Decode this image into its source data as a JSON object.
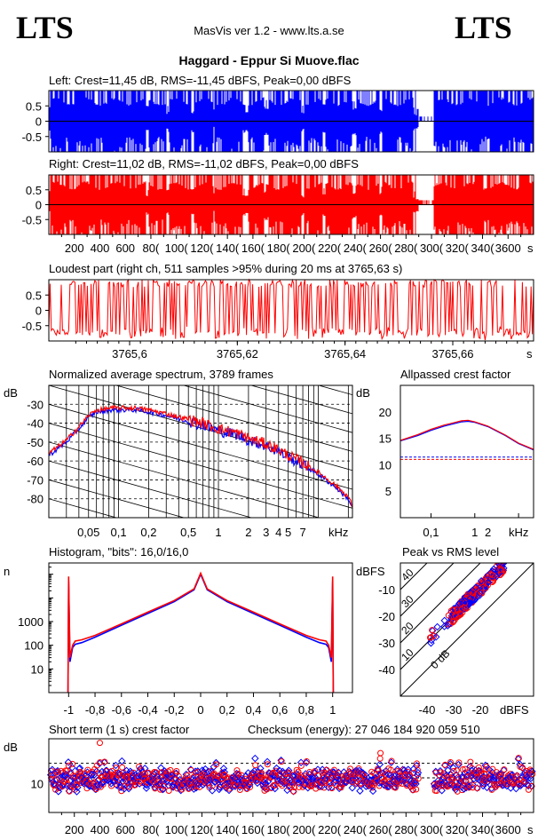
{
  "header": {
    "logo_left": "LTS",
    "logo_right": "LTS",
    "app_title": "MasVis ver 1.2 - www.lts.a.se",
    "file_title": "Haggard - Eppur Si Muove.flac"
  },
  "colors": {
    "left": "#0000ff",
    "right": "#ff0000",
    "line": "#000000"
  },
  "chart_data": [
    {
      "id": "waveform-left",
      "type": "area",
      "title": "Left: Crest=11,45 dB, RMS=-11,45 dBFS, Peak=0,00 dBFS",
      "ylim": [
        -1,
        1
      ],
      "yticks": [
        "0.5",
        "0",
        "-0.5"
      ],
      "ytick_values": [
        0.5,
        0,
        -0.5
      ],
      "xlim": [
        0,
        3800
      ],
      "series_color": "#0000ff"
    },
    {
      "id": "waveform-right",
      "type": "area",
      "title": "Right: Crest=11,02 dB, RMS=-11,02 dBFS, Peak=0,00 dBFS",
      "ylim": [
        -1,
        1
      ],
      "yticks": [
        "0.5",
        "0",
        "-0.5"
      ],
      "ytick_values": [
        0.5,
        0,
        -0.5
      ],
      "xlim": [
        0,
        3800
      ],
      "xticks": [
        "200",
        "400",
        "600",
        "800",
        "1000",
        "1200",
        "1400",
        "1600",
        "1800",
        "2000",
        "2200",
        "2400",
        "2600",
        "2800",
        "3000",
        "3200",
        "3400",
        "3600"
      ],
      "xticks_shown": [
        "200",
        "400",
        "600",
        "80(",
        "100(",
        "120(",
        "140(",
        "160(",
        "180(",
        "200(",
        "220(",
        "240(",
        "260(",
        "280(",
        "300(",
        "320(",
        "340(",
        "3600"
      ],
      "xtick_values": [
        200,
        400,
        600,
        800,
        1000,
        1200,
        1400,
        1600,
        1800,
        2000,
        2200,
        2400,
        2600,
        2800,
        3000,
        3200,
        3400,
        3600
      ],
      "xunit": "s",
      "series_color": "#ff0000"
    },
    {
      "id": "loudest-part",
      "type": "line",
      "title": "Loudest part (right ch, 511 samples >95% during 20 ms at 3765,63 s)",
      "ylim": [
        -1,
        1
      ],
      "yticks": [
        "0.5",
        "0",
        "-0.5"
      ],
      "ytick_values": [
        0.5,
        0,
        -0.5
      ],
      "xlim": [
        3765.585,
        3765.675
      ],
      "xticks": [
        "3765,6",
        "3765,62",
        "3765,64",
        "3765,66"
      ],
      "xtick_values": [
        3765.6,
        3765.62,
        3765.64,
        3765.66
      ],
      "xunit": "s",
      "series_color": "#ff0000"
    },
    {
      "id": "spectrum",
      "type": "line",
      "title": "Normalized average spectrum, 3789 frames",
      "ylabel": "dB",
      "ylim": [
        -90,
        -20
      ],
      "yticks": [
        "-30",
        "-40",
        "-50",
        "-60",
        "-70",
        "-80"
      ],
      "ytick_values": [
        -30,
        -40,
        -50,
        -60,
        -70,
        -80
      ],
      "xscale": "log",
      "xlim": [
        0.02,
        22
      ],
      "xticks": [
        "0,05",
        "0,1",
        "0,2",
        "0,5",
        "1",
        "2",
        "3",
        "4",
        "5",
        "7"
      ],
      "xtick_values": [
        0.05,
        0.1,
        0.2,
        0.5,
        1,
        2,
        3,
        4,
        5,
        7
      ],
      "xunit": "kHz",
      "x": [
        0.02,
        0.03,
        0.04,
        0.05,
        0.06,
        0.07,
        0.08,
        0.1,
        0.15,
        0.2,
        0.3,
        0.5,
        0.7,
        1,
        1.5,
        2,
        3,
        4,
        5,
        7,
        10,
        15,
        20,
        22
      ],
      "series": [
        {
          "name": "left",
          "color": "#0000ff",
          "values": [
            -57,
            -50,
            -43,
            -37,
            -34,
            -34,
            -33,
            -33,
            -33,
            -34,
            -36,
            -39,
            -41,
            -44,
            -46,
            -49,
            -52,
            -55,
            -58,
            -62,
            -67,
            -74,
            -80,
            -85
          ]
        },
        {
          "name": "right",
          "color": "#ff0000",
          "values": [
            -56,
            -49,
            -42,
            -36,
            -33,
            -33,
            -32,
            -32,
            -32,
            -33,
            -35,
            -38,
            -40,
            -43,
            -45,
            -48,
            -51,
            -54,
            -57,
            -61,
            -66,
            -73,
            -79,
            -84
          ]
        }
      ]
    },
    {
      "id": "allpassed-crest",
      "type": "line",
      "title": "Allpassed crest factor",
      "ylabel": "dB",
      "ylim": [
        0,
        25
      ],
      "yticks": [
        "20",
        "15",
        "10",
        "5"
      ],
      "ytick_values": [
        20,
        15,
        10,
        5
      ],
      "xscale": "log",
      "xlim": [
        0.02,
        22
      ],
      "xticks": [
        "0,1",
        "1",
        "2"
      ],
      "xtick_values": [
        0.1,
        1,
        2
      ],
      "xunit": "kHz",
      "x": [
        0.02,
        0.05,
        0.1,
        0.2,
        0.5,
        0.7,
        1,
        2,
        5,
        10,
        22
      ],
      "series": [
        {
          "name": "left",
          "color": "#0000ff",
          "values": [
            14.5,
            15.5,
            16.5,
            17.3,
            18.1,
            18.2,
            18.0,
            17.2,
            15.5,
            14.0,
            12.8
          ],
          "reference": 11.45
        },
        {
          "name": "right",
          "color": "#ff0000",
          "values": [
            14.6,
            15.7,
            16.7,
            17.5,
            18.3,
            18.4,
            18.1,
            17.3,
            15.6,
            14.1,
            12.9
          ],
          "reference": 11.02
        }
      ]
    },
    {
      "id": "histogram",
      "type": "line",
      "title": "Histogram, \"bits\": 16,0/16,0",
      "ylabel": "n",
      "yscale": "log",
      "ylim": [
        1,
        300000
      ],
      "yticks": [
        "1000",
        "100",
        "10"
      ],
      "ytick_values": [
        1000,
        100,
        10
      ],
      "xlim": [
        -1.15,
        1.15
      ],
      "xticks": [
        "-1",
        "-0,8",
        "-0,6",
        "-0,4",
        "-0,2",
        "0",
        "0,2",
        "0,4",
        "0,6",
        "0,8",
        "1"
      ],
      "xtick_values": [
        -1,
        -0.8,
        -0.6,
        -0.4,
        -0.2,
        0,
        0.2,
        0.4,
        0.6,
        0.8,
        1
      ],
      "x": [
        -1,
        -0.99,
        -0.97,
        -0.95,
        -0.9,
        -0.8,
        -0.6,
        -0.4,
        -0.2,
        -0.05,
        0,
        0.05,
        0.2,
        0.4,
        0.6,
        0.8,
        0.9,
        0.95,
        0.97,
        0.99,
        1
      ],
      "series": [
        {
          "name": "left",
          "color": "#0000ff",
          "values": [
            50000,
            20,
            80,
            110,
            130,
            220,
            700,
            2200,
            7000,
            22000,
            100000,
            22000,
            7000,
            2200,
            700,
            220,
            130,
            110,
            80,
            20,
            50000
          ]
        },
        {
          "name": "right",
          "color": "#ff0000",
          "values": [
            80000,
            30,
            100,
            150,
            170,
            260,
            800,
            2500,
            7800,
            24000,
            110000,
            24000,
            7800,
            2500,
            800,
            260,
            170,
            150,
            100,
            30,
            80000
          ]
        }
      ]
    },
    {
      "id": "peak-vs-rms",
      "type": "scatter",
      "title": "Peak vs RMS level",
      "ylabel": "dBFS",
      "xunit": "dBFS",
      "xlim": [
        -50,
        0
      ],
      "ylim": [
        -50,
        0
      ],
      "xticks": [
        "-40",
        "-30",
        "-20"
      ],
      "xtick_values": [
        -40,
        -30,
        -20
      ],
      "yticks": [
        "-10",
        "-20",
        "-30",
        "-40"
      ],
      "ytick_values": [
        -10,
        -20,
        -30,
        -40
      ],
      "diagonal_labels": [
        "0 dB",
        "10",
        "20",
        "30",
        "40"
      ]
    },
    {
      "id": "short-term-crest",
      "type": "scatter",
      "title": "Short term (1 s) crest factor",
      "checksum": "Checksum (energy):  27 046 184 920 059 510",
      "ylabel": "dB",
      "ylim": [
        3,
        21
      ],
      "yticks": [
        "10"
      ],
      "ytick_values": [
        10
      ],
      "reference_lines": [
        11.45,
        15
      ],
      "xlim": [
        0,
        3800
      ],
      "xticks_shown": [
        "200",
        "400",
        "600",
        "80(",
        "100(",
        "120(",
        "140(",
        "160(",
        "180(",
        "200(",
        "220(",
        "240(",
        "260(",
        "280(",
        "300(",
        "320(",
        "340(",
        "3600"
      ],
      "xtick_values": [
        200,
        400,
        600,
        800,
        1000,
        1200,
        1400,
        1600,
        1800,
        2000,
        2200,
        2400,
        2600,
        2800,
        3000,
        3200,
        3400,
        3600
      ],
      "xunit": "s"
    }
  ]
}
